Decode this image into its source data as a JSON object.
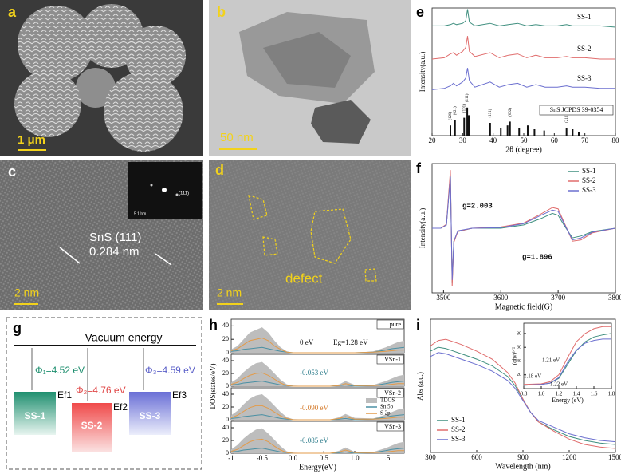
{
  "panels": {
    "a": {
      "label": "a",
      "scale_bar": "1 μm"
    },
    "b": {
      "label": "b",
      "scale_bar": "50 nm"
    },
    "c": {
      "label": "c",
      "scale_bar": "2 nm",
      "plane": "SnS (111)",
      "spacing": "0.284 nm",
      "inset_plane": "(111)",
      "inset_scale": "5 1/nm"
    },
    "d": {
      "label": "d",
      "scale_bar": "2 nm",
      "annotation": "defect"
    },
    "g": {
      "label": "g",
      "title": "Vacuum energy",
      "materials": [
        {
          "name": "SS-1",
          "work_function": "Φ₁=4.52 eV",
          "fermi": "Ef1"
        },
        {
          "name": "SS-2",
          "work_function": "Φ₂=4.76 eV",
          "fermi": "Ef2"
        },
        {
          "name": "SS-3",
          "work_function": "Φ₃=4.59 eV",
          "fermi": "Ef3"
        }
      ]
    }
  },
  "chart_data": [
    {
      "type": "line",
      "label": "e",
      "xlabel": "2θ (degree)",
      "ylabel": "Intensity(a.u.)",
      "legend": "inline",
      "xlim": [
        20,
        80
      ],
      "ylim": [
        0,
        10
      ],
      "xticks": [
        20,
        30,
        40,
        50,
        60,
        70,
        80
      ],
      "x": [
        20,
        24,
        26,
        27,
        28,
        30,
        31,
        31.6,
        32.2,
        34,
        39,
        42,
        45,
        48,
        51,
        54,
        57,
        61,
        64,
        66,
        70,
        75,
        80
      ],
      "series": [
        {
          "name": "SS-1",
          "color": "#3f8f7f",
          "values": [
            8.6,
            8.6,
            8.7,
            8.8,
            8.7,
            8.8,
            9.0,
            9.9,
            8.9,
            8.6,
            8.8,
            8.6,
            8.7,
            8.8,
            8.6,
            8.7,
            8.6,
            8.6,
            8.7,
            8.6,
            8.6,
            8.6,
            8.5
          ]
        },
        {
          "name": "SS-2",
          "color": "#e06c6c",
          "values": [
            6.0,
            6.1,
            6.4,
            6.5,
            6.3,
            6.6,
            6.9,
            7.8,
            6.6,
            6.2,
            6.5,
            6.1,
            6.3,
            6.4,
            6.1,
            6.3,
            6.1,
            6.1,
            6.2,
            6.1,
            6.1,
            6.0,
            6.0
          ]
        },
        {
          "name": "SS-3",
          "color": "#6b6fcf",
          "values": [
            3.6,
            3.7,
            3.9,
            4.1,
            3.9,
            4.2,
            4.5,
            5.3,
            4.3,
            3.8,
            4.2,
            3.8,
            4.0,
            4.1,
            3.8,
            4.0,
            3.8,
            3.8,
            3.9,
            3.8,
            3.8,
            3.7,
            3.7
          ]
        }
      ],
      "reference": {
        "name": "SnS JCPDS 39-0354",
        "color": "#111111",
        "x": [
          26.0,
          27.5,
          30.5,
          31.5,
          32.0,
          39.0,
          42.5,
          44.7,
          45.5,
          48.5,
          51.3,
          53.5,
          56.7,
          64.0,
          66.0,
          68.0
        ],
        "values": [
          0.8,
          1.2,
          1.4,
          2.2,
          1.6,
          1.0,
          0.6,
          0.8,
          1.1,
          0.6,
          0.8,
          0.5,
          0.4,
          0.6,
          0.5,
          0.3
        ],
        "labels": [
          "(120)",
          "(021)",
          "(101)",
          "(111)",
          null,
          "(131)",
          null,
          null,
          "(002)",
          null,
          null,
          null,
          null,
          "(212)",
          null,
          null
        ]
      }
    },
    {
      "type": "line",
      "label": "f",
      "xlabel": "Magnetic field(G)",
      "ylabel": "Intensity(a.u.)",
      "legend": "top right",
      "xlim": [
        3480,
        3800
      ],
      "ylim": [
        -10,
        10
      ],
      "xticks": [
        3500,
        3600,
        3700,
        3800
      ],
      "annotations": [
        "g=2.003",
        "g=1.896"
      ],
      "x": [
        3480,
        3495,
        3505,
        3512,
        3515,
        3518,
        3525,
        3550,
        3600,
        3640,
        3670,
        3690,
        3700,
        3710,
        3725,
        3740,
        3760,
        3800
      ],
      "series": [
        {
          "name": "SS-1",
          "color": "#3f8f7f",
          "values": [
            0,
            0,
            0.5,
            8.5,
            -8.5,
            -2,
            -0.5,
            0,
            0,
            0.5,
            1.5,
            2.3,
            2,
            0.5,
            -1.5,
            -1.2,
            -0.5,
            0
          ]
        },
        {
          "name": "SS-2",
          "color": "#e06c6c",
          "values": [
            0,
            0,
            0.6,
            9,
            -9,
            -2.2,
            -0.5,
            0,
            0.2,
            0.8,
            2.2,
            3.2,
            3,
            1,
            -2,
            -1.8,
            -0.7,
            0
          ]
        },
        {
          "name": "SS-3",
          "color": "#6b6fcf",
          "values": [
            0,
            0,
            0.5,
            8,
            -8,
            -2,
            -0.4,
            0,
            0.1,
            0.7,
            2,
            2.8,
            2.6,
            0.8,
            -1.8,
            -1.5,
            -0.6,
            0
          ]
        }
      ]
    },
    {
      "type": "line",
      "label": "h",
      "title": "pure",
      "xlim": [
        -1.0,
        1.8
      ],
      "ylim": [
        0,
        50
      ],
      "yticks": [
        0,
        20,
        40
      ],
      "vline": 0,
      "annotations": [
        "0 eV",
        "Eg=1.28 eV"
      ],
      "x": [
        -1.0,
        -0.9,
        -0.8,
        -0.7,
        -0.6,
        -0.5,
        -0.4,
        -0.3,
        -0.2,
        -0.1,
        0,
        0.3,
        0.6,
        0.75,
        0.85,
        1.0,
        1.3,
        1.5,
        1.6,
        1.7,
        1.8
      ],
      "series": [
        {
          "color": "#bdbdbd",
          "style": "area",
          "values": [
            5,
            10,
            20,
            30,
            34,
            38,
            30,
            18,
            8,
            2,
            0,
            0,
            0,
            0,
            0,
            0,
            2,
            8,
            12,
            16,
            18
          ]
        },
        {
          "color": "#4a90a4",
          "values": [
            2,
            3,
            5,
            6,
            7,
            8,
            6,
            4,
            2,
            1,
            0,
            0,
            0,
            0,
            0,
            0,
            1,
            4,
            6,
            7,
            8
          ]
        },
        {
          "color": "#e39b4a",
          "values": [
            3,
            6,
            12,
            18,
            20,
            22,
            18,
            10,
            5,
            1,
            0,
            0,
            0,
            0,
            0,
            0,
            1,
            2,
            3,
            4,
            4
          ]
        }
      ]
    },
    {
      "type": "line",
      "title": "VSn-1",
      "ylabel": "DOS(states/eV)",
      "xlim": [
        -1.0,
        1.8
      ],
      "ylim": [
        0,
        50
      ],
      "yticks": [
        0,
        20,
        40
      ],
      "vline": 0,
      "annotations": [
        "-0.053 eV"
      ],
      "x": [
        -1.0,
        -0.9,
        -0.8,
        -0.7,
        -0.6,
        -0.5,
        -0.4,
        -0.3,
        -0.2,
        -0.1,
        0,
        0.3,
        0.6,
        0.75,
        0.85,
        1.0,
        1.3,
        1.5,
        1.6,
        1.7,
        1.8
      ],
      "series": [
        {
          "color": "#bdbdbd",
          "style": "area",
          "values": [
            6,
            12,
            22,
            30,
            36,
            38,
            30,
            20,
            10,
            3,
            1,
            0,
            0,
            3,
            8,
            2,
            2,
            8,
            12,
            16,
            18
          ]
        },
        {
          "color": "#4a90a4",
          "values": [
            2,
            3,
            5,
            6,
            7,
            8,
            6,
            4,
            2,
            1,
            0,
            0,
            0,
            1,
            2,
            0,
            1,
            4,
            6,
            7,
            8
          ]
        },
        {
          "color": "#e39b4a",
          "values": [
            3,
            6,
            12,
            17,
            20,
            21,
            17,
            11,
            5,
            1,
            0,
            0,
            0,
            1,
            4,
            1,
            1,
            2,
            3,
            4,
            4
          ]
        }
      ]
    },
    {
      "type": "line",
      "title": "VSn-2",
      "legend": "right",
      "xlim": [
        -1.0,
        1.8
      ],
      "ylim": [
        0,
        50
      ],
      "yticks": [
        0,
        20,
        40
      ],
      "vline": 0,
      "annotations": [
        "-0.090 eV"
      ],
      "x": [
        -1.0,
        -0.9,
        -0.8,
        -0.7,
        -0.6,
        -0.5,
        -0.4,
        -0.3,
        -0.2,
        -0.1,
        0,
        0.3,
        0.6,
        0.75,
        0.85,
        1.0,
        1.3,
        1.5,
        1.6,
        1.7,
        1.8
      ],
      "series": [
        {
          "name": "TDOS",
          "color": "#bdbdbd",
          "style": "area",
          "values": [
            7,
            14,
            24,
            33,
            38,
            40,
            32,
            22,
            12,
            4,
            1,
            0,
            0,
            4,
            9,
            3,
            2,
            8,
            12,
            16,
            18
          ]
        },
        {
          "name": "Sn 5p",
          "color": "#4a90a4",
          "values": [
            2,
            3,
            5,
            6,
            7,
            8,
            6,
            4,
            2,
            1,
            0,
            0,
            0,
            1,
            2,
            0,
            1,
            4,
            6,
            7,
            8
          ]
        },
        {
          "name": "S 2p",
          "color": "#e39b4a",
          "values": [
            3,
            7,
            13,
            19,
            22,
            22,
            18,
            12,
            6,
            2,
            0,
            0,
            0,
            2,
            5,
            1,
            1,
            2,
            3,
            4,
            4
          ]
        }
      ]
    },
    {
      "type": "line",
      "title": "VSn-3",
      "xlabel": "Energy(eV)",
      "xlim": [
        -1.0,
        1.8
      ],
      "ylim": [
        0,
        50
      ],
      "yticks": [
        0,
        20,
        40
      ],
      "vline": 0,
      "annotations": [
        "-0.085 eV"
      ],
      "xticks": [
        -1,
        -0.5,
        {
          "value": 0,
          "label": "0.0"
        },
        0.5,
        {
          "value": 1,
          "label": "1.0"
        },
        1.5
      ],
      "x": [
        -1.0,
        -0.9,
        -0.8,
        -0.7,
        -0.6,
        -0.5,
        -0.4,
        -0.3,
        -0.2,
        -0.1,
        0,
        0.3,
        0.6,
        0.75,
        0.85,
        1.0,
        1.3,
        1.5,
        1.6,
        1.7,
        1.8
      ],
      "series": [
        {
          "color": "#bdbdbd",
          "style": "area",
          "values": [
            6,
            13,
            23,
            31,
            37,
            39,
            31,
            21,
            11,
            3,
            1,
            0,
            0,
            4,
            9,
            2,
            2,
            8,
            12,
            16,
            18
          ]
        },
        {
          "color": "#4a90a4",
          "values": [
            2,
            3,
            5,
            6,
            7,
            8,
            6,
            4,
            2,
            1,
            0,
            0,
            0,
            1,
            2,
            0,
            1,
            4,
            6,
            7,
            8
          ]
        },
        {
          "color": "#e39b4a",
          "values": [
            3,
            6,
            12,
            18,
            21,
            22,
            18,
            11,
            5,
            1,
            0,
            0,
            0,
            2,
            5,
            1,
            1,
            2,
            3,
            4,
            4
          ]
        }
      ]
    },
    {
      "type": "line",
      "label": "i",
      "xlabel": "Wavelength (nm)",
      "ylabel": "Abs (a.u.)",
      "legend": "bottom left",
      "xlim": [
        300,
        1500
      ],
      "ylim": [
        0,
        10
      ],
      "xticks": [
        300,
        600,
        900,
        1200,
        1500
      ],
      "x": [
        300,
        350,
        400,
        500,
        600,
        700,
        800,
        850,
        900,
        950,
        1000,
        1100,
        1200,
        1300,
        1400,
        1500
      ],
      "series": [
        {
          "name": "SS-1",
          "color": "#3f8f7f",
          "values": [
            7.6,
            7.9,
            7.8,
            7.4,
            7.0,
            6.5,
            5.7,
            5.0,
            4.0,
            3.0,
            2.3,
            1.7,
            1.2,
            0.9,
            0.7,
            0.6
          ]
        },
        {
          "name": "SS-2",
          "color": "#e06c6c",
          "values": [
            8.0,
            8.4,
            8.5,
            8.1,
            7.6,
            7.0,
            6.0,
            5.2,
            4.0,
            3.0,
            2.3,
            1.6,
            1.0,
            0.6,
            0.4,
            0.3
          ]
        },
        {
          "name": "SS-3",
          "color": "#6b6fcf",
          "values": [
            7.2,
            7.5,
            7.4,
            7.0,
            6.6,
            6.1,
            5.4,
            4.8,
            3.9,
            3.0,
            2.4,
            1.9,
            1.4,
            1.1,
            0.9,
            0.8
          ]
        }
      ]
    },
    {
      "type": "line",
      "xlabel": "Energy (eV)",
      "ylabel": "(αhν)¹ᐟ²",
      "xlim": [
        0.8,
        1.8
      ],
      "ylim": [
        0,
        95
      ],
      "xticks": [
        0.8,
        {
          "value": 1,
          "label": "1.0"
        },
        1.2,
        1.4,
        1.6,
        1.8
      ],
      "yticks": [
        20,
        40,
        60,
        80
      ],
      "annotations": [
        "1.21 eV",
        "1.18 eV",
        "1.22 eV"
      ],
      "x": [
        0.8,
        1.0,
        1.1,
        1.2,
        1.3,
        1.4,
        1.5,
        1.6,
        1.7,
        1.8
      ],
      "series": [
        {
          "color": "#3f8f7f",
          "values": [
            5,
            6,
            8,
            15,
            35,
            55,
            68,
            75,
            78,
            80
          ]
        },
        {
          "color": "#e06c6c",
          "values": [
            6,
            7,
            10,
            20,
            45,
            68,
            80,
            87,
            90,
            90
          ]
        },
        {
          "color": "#6b6fcf",
          "values": [
            5,
            6,
            8,
            16,
            38,
            56,
            66,
            70,
            72,
            72
          ]
        }
      ]
    }
  ]
}
